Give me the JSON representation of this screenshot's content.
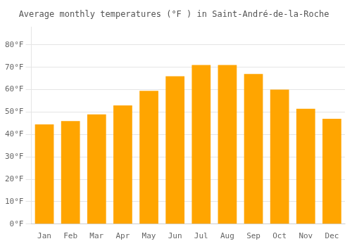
{
  "chart_data": {
    "type": "bar",
    "title": "Average monthly temperatures (°F ) in Saint-André-de-la-Roche",
    "categories": [
      "Jan",
      "Feb",
      "Mar",
      "Apr",
      "May",
      "Jun",
      "Jul",
      "Aug",
      "Sep",
      "Oct",
      "Nov",
      "Dec"
    ],
    "values": [
      44.5,
      46.0,
      49.0,
      53.0,
      59.5,
      66.0,
      71.0,
      71.0,
      67.0,
      60.0,
      51.5,
      47.0
    ],
    "color": "#FFA500",
    "ylim": [
      0,
      88
    ],
    "yticks": [
      {
        "value": 0,
        "label": "0°F"
      },
      {
        "value": 10,
        "label": "10°F"
      },
      {
        "value": 20,
        "label": "20°F"
      },
      {
        "value": 30,
        "label": "30°F"
      },
      {
        "value": 40,
        "label": "40°F"
      },
      {
        "value": 50,
        "label": "50°F"
      },
      {
        "value": 60,
        "label": "60°F"
      },
      {
        "value": 70,
        "label": "70°F"
      },
      {
        "value": 80,
        "label": "80°F"
      }
    ],
    "grid": true
  }
}
